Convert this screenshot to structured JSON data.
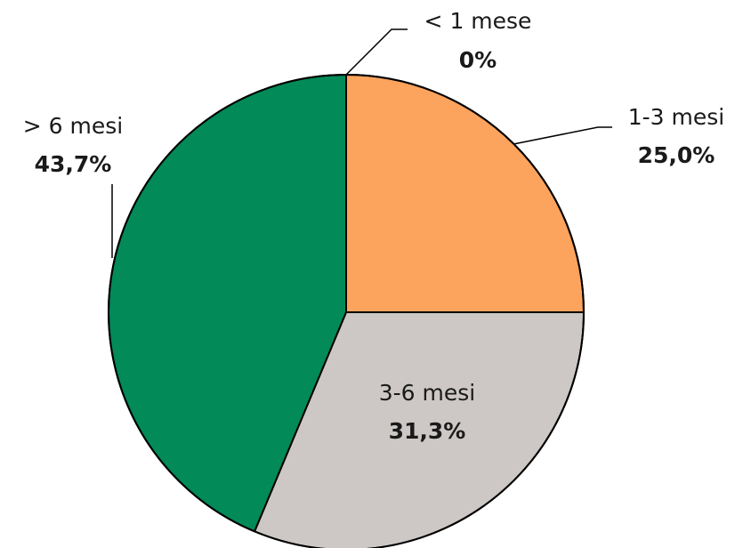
{
  "chart_data": {
    "type": "pie",
    "slices": [
      {
        "label": "< 1 mese",
        "value": 0,
        "value_label": "0%",
        "color": "#ffffff"
      },
      {
        "label": "1-3 mesi",
        "value": 25.0,
        "value_label": "25,0%",
        "color": "#FCA35D"
      },
      {
        "label": "3-6 mesi",
        "value": 31.3,
        "value_label": "31,3%",
        "color": "#CDC8C5"
      },
      {
        "label": "> 6 mesi",
        "value": 43.7,
        "value_label": "43,7%",
        "color": "#028A58"
      }
    ],
    "start_angle": "12 o'clock",
    "direction": "clockwise",
    "outline_color": "#000000",
    "legend": "none"
  }
}
